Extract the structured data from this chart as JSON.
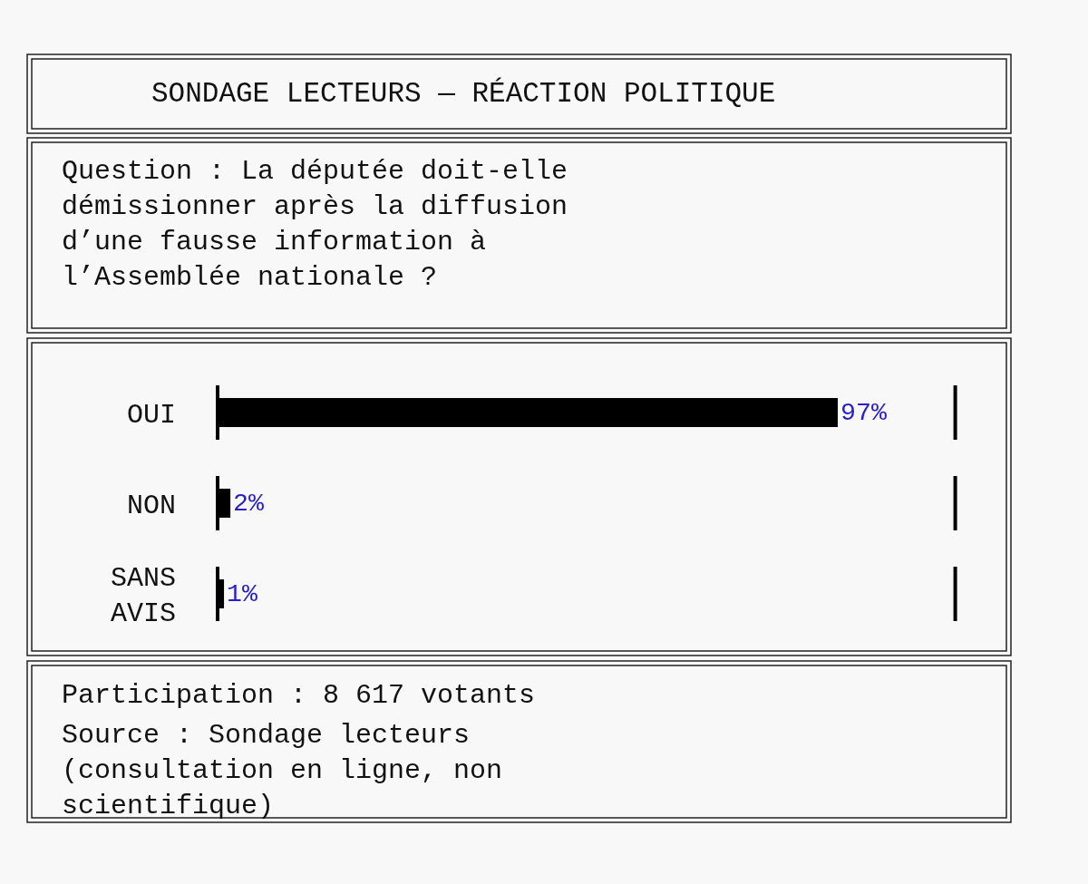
{
  "chart_data": {
    "type": "bar",
    "orientation": "horizontal",
    "title": "SONDAGE LECTEURS — RÉACTION POLITIQUE",
    "subtitle": "Question : La députée doit-elle démissionner après la diffusion d’une fausse information à l’Assemblée nationale ?",
    "categories": [
      "OUI",
      "NON",
      "SANS AVIS"
    ],
    "values": [
      97,
      2,
      1
    ],
    "value_labels": [
      "97%",
      "2%",
      "1%"
    ],
    "color": "#000000",
    "tick_labels": "y",
    "grid": false,
    "annotations": [
      "Participation : 8 617 votants",
      "Source : Sondage lecteurs (consultation en ligne, non scientifique)"
    ]
  }
}
